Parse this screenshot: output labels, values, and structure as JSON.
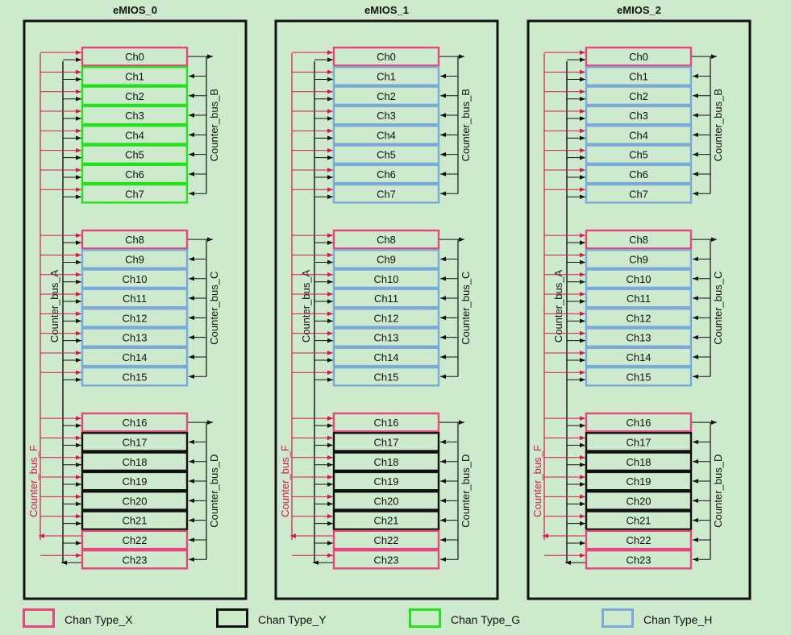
{
  "modules": [
    {
      "title": "eMIOS_0",
      "groups": [
        {
          "channels": [
            {
              "label": "Ch0",
              "type": "X"
            },
            {
              "label": "Ch1",
              "type": "G"
            },
            {
              "label": "Ch2",
              "type": "G"
            },
            {
              "label": "Ch3",
              "type": "G"
            },
            {
              "label": "Ch4",
              "type": "G"
            },
            {
              "label": "Ch5",
              "type": "G"
            },
            {
              "label": "Ch6",
              "type": "G"
            },
            {
              "label": "Ch7",
              "type": "G"
            }
          ],
          "bus": "Counter_bus_B"
        },
        {
          "channels": [
            {
              "label": "Ch8",
              "type": "X"
            },
            {
              "label": "Ch9",
              "type": "H"
            },
            {
              "label": "Ch10",
              "type": "H"
            },
            {
              "label": "Ch11",
              "type": "H"
            },
            {
              "label": "Ch12",
              "type": "H"
            },
            {
              "label": "Ch13",
              "type": "H"
            },
            {
              "label": "Ch14",
              "type": "H"
            },
            {
              "label": "Ch15",
              "type": "H"
            }
          ],
          "bus": "Counter_bus_C"
        },
        {
          "channels": [
            {
              "label": "Ch16",
              "type": "X"
            },
            {
              "label": "Ch17",
              "type": "Y"
            },
            {
              "label": "Ch18",
              "type": "Y"
            },
            {
              "label": "Ch19",
              "type": "Y"
            },
            {
              "label": "Ch20",
              "type": "Y"
            },
            {
              "label": "Ch21",
              "type": "Y"
            },
            {
              "label": "Ch22",
              "type": "X"
            },
            {
              "label": "Ch23",
              "type": "X"
            }
          ],
          "bus": "Counter_bus_D"
        }
      ]
    },
    {
      "title": "eMIOS_1",
      "groups": [
        {
          "channels": [
            {
              "label": "Ch0",
              "type": "X"
            },
            {
              "label": "Ch1",
              "type": "H"
            },
            {
              "label": "Ch2",
              "type": "H"
            },
            {
              "label": "Ch3",
              "type": "H"
            },
            {
              "label": "Ch4",
              "type": "H"
            },
            {
              "label": "Ch5",
              "type": "H"
            },
            {
              "label": "Ch6",
              "type": "H"
            },
            {
              "label": "Ch7",
              "type": "H"
            }
          ],
          "bus": "Counter_bus_B"
        },
        {
          "channels": [
            {
              "label": "Ch8",
              "type": "X"
            },
            {
              "label": "Ch9",
              "type": "H"
            },
            {
              "label": "Ch10",
              "type": "H"
            },
            {
              "label": "Ch11",
              "type": "H"
            },
            {
              "label": "Ch12",
              "type": "H"
            },
            {
              "label": "Ch13",
              "type": "H"
            },
            {
              "label": "Ch14",
              "type": "H"
            },
            {
              "label": "Ch15",
              "type": "H"
            }
          ],
          "bus": "Counter_bus_C"
        },
        {
          "channels": [
            {
              "label": "Ch16",
              "type": "X"
            },
            {
              "label": "Ch17",
              "type": "Y"
            },
            {
              "label": "Ch18",
              "type": "Y"
            },
            {
              "label": "Ch19",
              "type": "Y"
            },
            {
              "label": "Ch20",
              "type": "Y"
            },
            {
              "label": "Ch21",
              "type": "Y"
            },
            {
              "label": "Ch22",
              "type": "X"
            },
            {
              "label": "Ch23",
              "type": "X"
            }
          ],
          "bus": "Counter_bus_D"
        }
      ]
    },
    {
      "title": "eMIOS_2",
      "groups": [
        {
          "channels": [
            {
              "label": "Ch0",
              "type": "X"
            },
            {
              "label": "Ch1",
              "type": "H"
            },
            {
              "label": "Ch2",
              "type": "H"
            },
            {
              "label": "Ch3",
              "type": "H"
            },
            {
              "label": "Ch4",
              "type": "H"
            },
            {
              "label": "Ch5",
              "type": "H"
            },
            {
              "label": "Ch6",
              "type": "H"
            },
            {
              "label": "Ch7",
              "type": "H"
            }
          ],
          "bus": "Counter_bus_B"
        },
        {
          "channels": [
            {
              "label": "Ch8",
              "type": "X"
            },
            {
              "label": "Ch9",
              "type": "H"
            },
            {
              "label": "Ch10",
              "type": "H"
            },
            {
              "label": "Ch11",
              "type": "H"
            },
            {
              "label": "Ch12",
              "type": "H"
            },
            {
              "label": "Ch13",
              "type": "H"
            },
            {
              "label": "Ch14",
              "type": "H"
            },
            {
              "label": "Ch15",
              "type": "H"
            }
          ],
          "bus": "Counter_bus_C"
        },
        {
          "channels": [
            {
              "label": "Ch16",
              "type": "X"
            },
            {
              "label": "Ch17",
              "type": "Y"
            },
            {
              "label": "Ch18",
              "type": "Y"
            },
            {
              "label": "Ch19",
              "type": "Y"
            },
            {
              "label": "Ch20",
              "type": "Y"
            },
            {
              "label": "Ch21",
              "type": "Y"
            },
            {
              "label": "Ch22",
              "type": "X"
            },
            {
              "label": "Ch23",
              "type": "X"
            }
          ],
          "bus": "Counter_bus_D"
        }
      ]
    }
  ],
  "bus_labels": {
    "a": "Counter_bus_A",
    "f": "Counter_bus_F"
  },
  "colors": {
    "X": "#e5467c",
    "Y": "#111111",
    "G": "#22e31c",
    "H": "#7baad9",
    "background": "#cdeacd",
    "box_fill": "#cdeacd",
    "red": "#d8174a",
    "black": "#111111"
  },
  "legend": [
    {
      "type": "X",
      "label": "Chan Type_X"
    },
    {
      "type": "Y",
      "label": "Chan Type_Y"
    },
    {
      "type": "G",
      "label": "Chan Type_G"
    },
    {
      "type": "H",
      "label": "Chan Type_H"
    }
  ]
}
